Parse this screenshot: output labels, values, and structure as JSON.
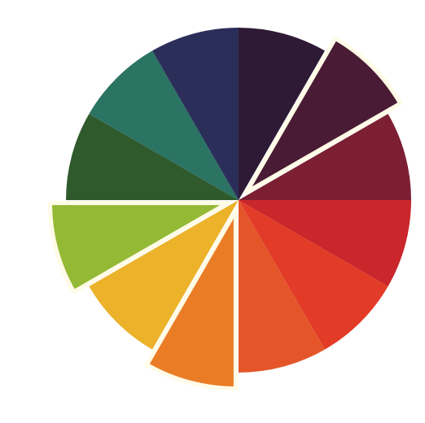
{
  "chart_data": {
    "type": "pie",
    "title": "",
    "highlighted_edge": "#fffbe6",
    "slices": [
      {
        "name": "",
        "value": 1,
        "color": "#2f1a36",
        "highlight": false
      },
      {
        "name": "",
        "value": 1,
        "color": "#4a1b35",
        "highlight": true
      },
      {
        "name": "",
        "value": 1,
        "color": "#7c1f32",
        "highlight": false
      },
      {
        "name": "",
        "value": 1,
        "color": "#c9272b",
        "highlight": false
      },
      {
        "name": "",
        "value": 1,
        "color": "#e23b27",
        "highlight": false
      },
      {
        "name": "",
        "value": 1,
        "color": "#e4562a",
        "highlight": false
      },
      {
        "name": "",
        "value": 1,
        "color": "#ea7c26",
        "highlight": true
      },
      {
        "name": "",
        "value": 1,
        "color": "#ecb22a",
        "highlight": false
      },
      {
        "name": "",
        "value": 1,
        "color": "#94b935",
        "highlight": true
      },
      {
        "name": "",
        "value": 1,
        "color": "#2f5a2c",
        "highlight": false
      },
      {
        "name": "",
        "value": 1,
        "color": "#2b7363",
        "highlight": false
      },
      {
        "name": "",
        "value": 1,
        "color": "#2c2e5a",
        "highlight": false
      }
    ]
  }
}
